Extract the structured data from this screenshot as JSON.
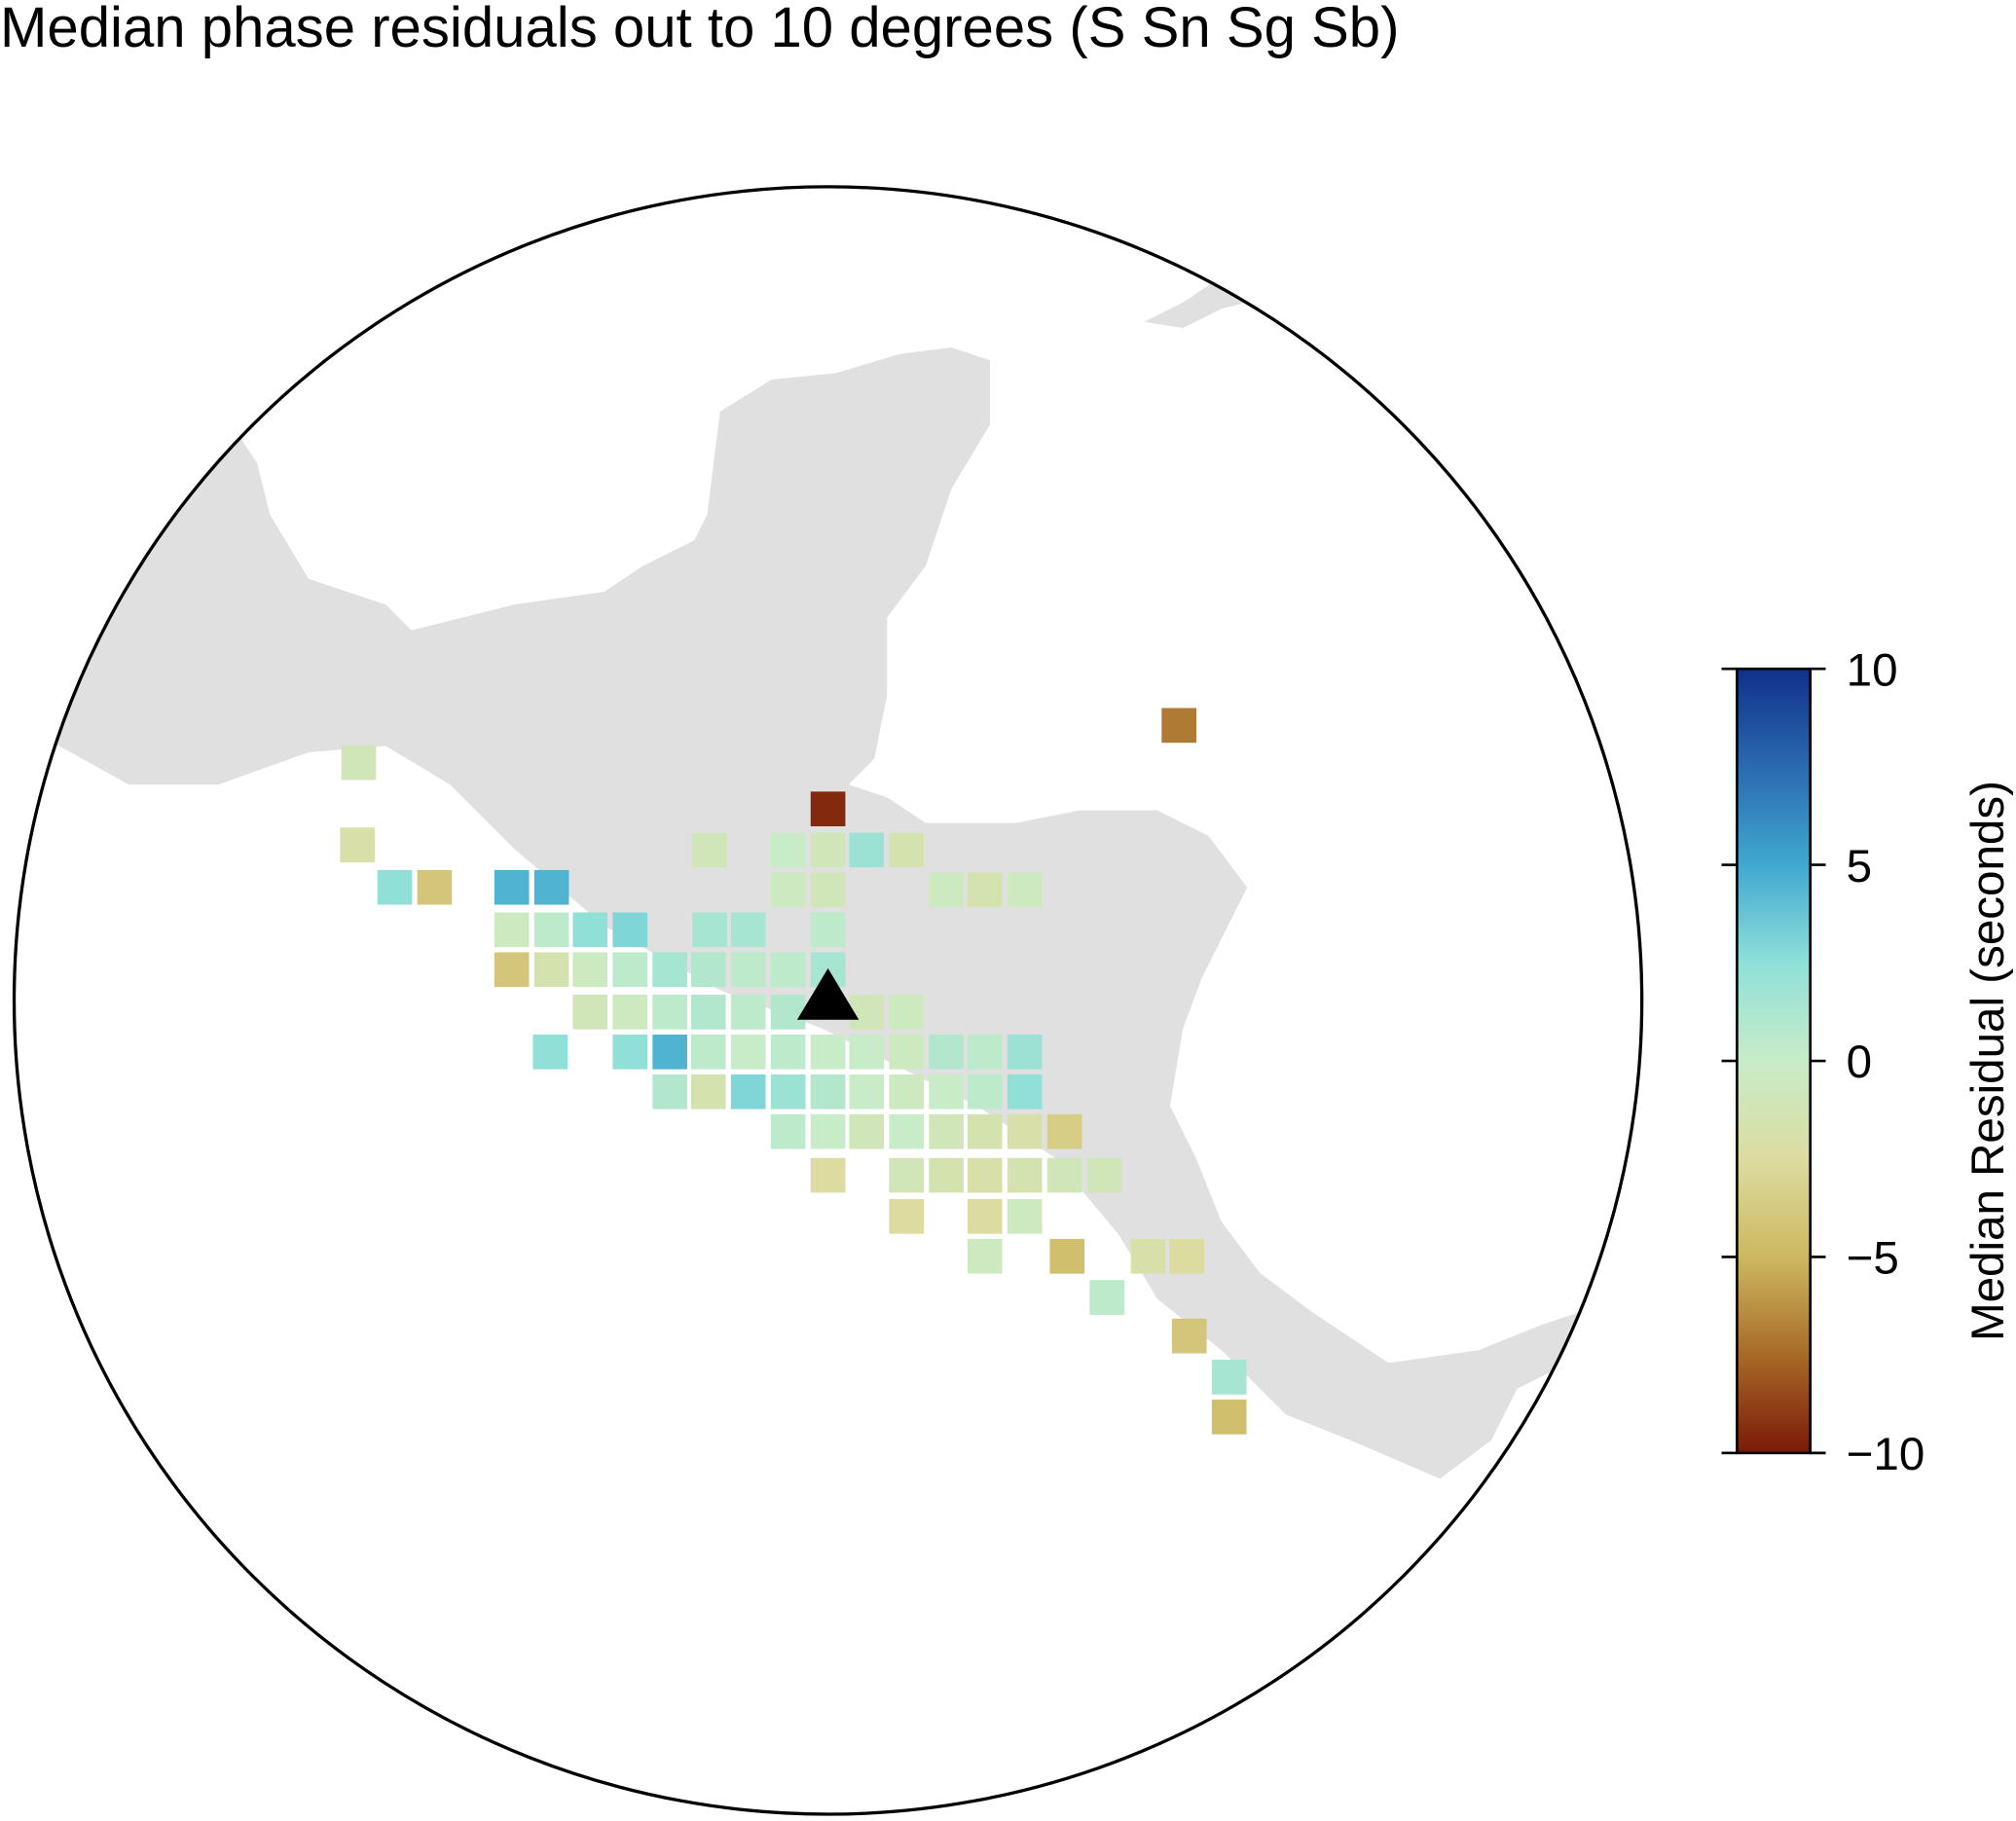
{
  "chart_data": {
    "type": "grid-map",
    "title": "Median phase residuals out to 10 degrees (S Sn Sg Sb)",
    "colorbar_label": "Median Residual (seconds)",
    "clim": [
      -10,
      10
    ],
    "cticks": [
      {
        "value": -10,
        "label": "−10"
      },
      {
        "value": -5,
        "label": "−5"
      },
      0,
      5,
      10
    ],
    "colormap": [
      "#7a1a08",
      "#a86a28",
      "#cdb860",
      "#dcdca0",
      "#c8ecc8",
      "#90e0d8",
      "#40a8d0",
      "#2a6ab0",
      "#10308a"
    ],
    "values": [
      -7,
      -1,
      -9.5,
      -2,
      -1,
      0,
      -1,
      2,
      -1.5,
      2.5,
      -4,
      4.5,
      4.5,
      -0.5,
      -1,
      -0.5,
      -1.5,
      -0.5,
      -0.5,
      0.5,
      2.5,
      3,
      1.5,
      1.5,
      0.5,
      -4,
      -1.5,
      -0.5,
      0.5,
      1.5,
      1,
      0.5,
      0.5,
      1.5,
      -1,
      -0.5,
      0.5,
      1,
      0.5,
      1,
      -1,
      -0.5,
      2.5,
      2.5,
      4.5,
      0.5,
      0,
      0.5,
      0,
      0,
      -0.5,
      1,
      0.5,
      2,
      1,
      -1.5,
      3,
      2,
      1,
      0,
      -0.5,
      0,
      0.5,
      2.5,
      0.5,
      0,
      -1,
      0,
      -1,
      -1.5,
      -2,
      -3.5,
      -2.5,
      -1,
      -1.5,
      -2,
      -1.5,
      -1,
      -1,
      -2.5,
      -2.5,
      -0.5,
      -0.5,
      -4.5,
      -2,
      -2.5,
      0.5,
      -4,
      1.5,
      -4.5
    ]
  }
}
